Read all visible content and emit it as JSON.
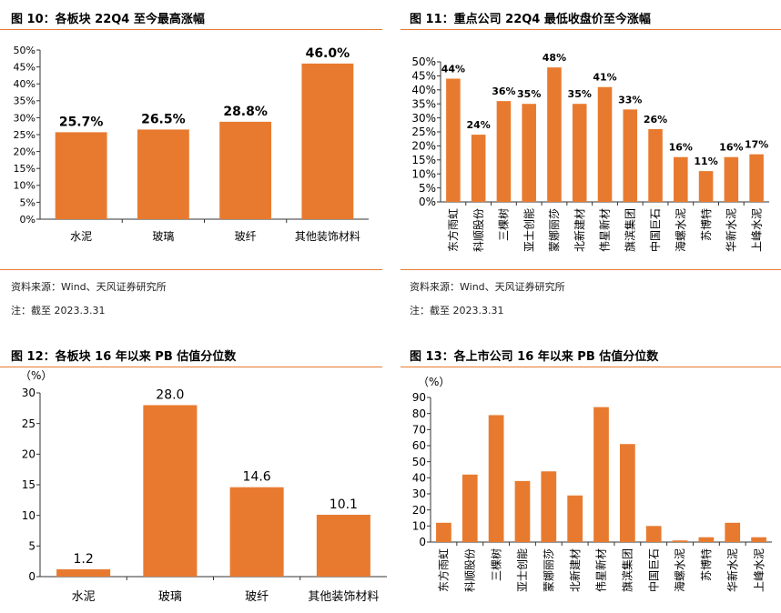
{
  "panels": {
    "p10": {
      "title": "图 10：各板块 22Q4 至今最高涨幅",
      "source": "资料来源：Wind、天风证券研究所",
      "note": "注：截至 2023.3.31"
    },
    "p11": {
      "title": "图 11：重点公司 22Q4 最低收盘价至今涨幅",
      "source": "资料来源：Wind、天风证券研究所",
      "note": "注：截至 2023.3.31"
    },
    "p12": {
      "title": "图 12：各板块 16 年以来 PB 估值分位数"
    },
    "p13": {
      "title": "图 13：各上市公司 16 年以来 PB 估值分位数"
    }
  },
  "chart_data": [
    {
      "id": "fig10",
      "type": "bar",
      "categories": [
        "水泥",
        "玻璃",
        "玻纤",
        "其他装饰材料"
      ],
      "values": [
        25.7,
        26.5,
        28.8,
        46.0
      ],
      "data_labels": [
        "25.7%",
        "26.5%",
        "28.8%",
        "46.0%"
      ],
      "yticks": [
        "0%",
        "5%",
        "10%",
        "15%",
        "20%",
        "25%",
        "30%",
        "35%",
        "40%",
        "45%",
        "50%"
      ],
      "ylim": [
        0,
        50
      ],
      "color": "#e87a2f",
      "grid": false
    },
    {
      "id": "fig11",
      "type": "bar",
      "categories": [
        "东方雨虹",
        "科顺股份",
        "三棵树",
        "亚士创能",
        "蒙娜丽莎",
        "北新建材",
        "伟星新材",
        "旗滨集团",
        "中国巨石",
        "海螺水泥",
        "苏博特",
        "华新水泥",
        "上峰水泥"
      ],
      "values": [
        44,
        24,
        36,
        35,
        48,
        35,
        41,
        33,
        26,
        16,
        11,
        16,
        17
      ],
      "data_labels": [
        "44%",
        "24%",
        "36%",
        "35%",
        "48%",
        "35%",
        "41%",
        "33%",
        "26%",
        "16%",
        "11%",
        "16%",
        "17%"
      ],
      "yticks": [
        "0%",
        "5%",
        "10%",
        "15%",
        "20%",
        "25%",
        "30%",
        "35%",
        "40%",
        "45%",
        "50%"
      ],
      "ylim": [
        0,
        50
      ],
      "color": "#e87a2f",
      "grid": false
    },
    {
      "id": "fig12",
      "type": "bar",
      "categories": [
        "水泥",
        "玻璃",
        "玻纤",
        "其他装饰材料"
      ],
      "values": [
        1.2,
        28.0,
        14.6,
        10.1
      ],
      "data_labels": [
        "1.2",
        "28.0",
        "14.6",
        "10.1"
      ],
      "yunit": "（%）",
      "yticks": [
        "0",
        "5",
        "10",
        "15",
        "20",
        "25",
        "30"
      ],
      "ylim": [
        0,
        30
      ],
      "color": "#e87a2f",
      "grid": false
    },
    {
      "id": "fig13",
      "type": "bar",
      "categories": [
        "东方雨虹",
        "科顺股份",
        "三棵树",
        "亚士创能",
        "蒙娜丽莎",
        "北新建材",
        "伟星新材",
        "旗滨集团",
        "中国巨石",
        "海螺水泥",
        "苏博特",
        "华新水泥",
        "上峰水泥"
      ],
      "values": [
        12,
        42,
        79,
        38,
        44,
        29,
        84,
        61,
        10,
        1,
        3,
        12,
        3
      ],
      "yunit": "（%）",
      "yticks": [
        "0",
        "10",
        "20",
        "30",
        "40",
        "50",
        "60",
        "70",
        "80",
        "90"
      ],
      "ylim": [
        0,
        90
      ],
      "color": "#e87a2f",
      "grid": false
    }
  ]
}
